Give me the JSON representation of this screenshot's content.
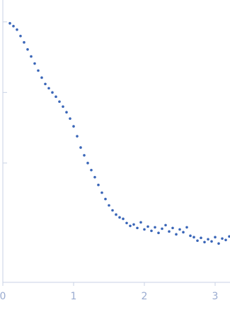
{
  "chart_data": {
    "type": "scatter",
    "color": "#3a66b8",
    "x": [
      0.1,
      0.15,
      0.2,
      0.25,
      0.3,
      0.35,
      0.4,
      0.45,
      0.5,
      0.55,
      0.6,
      0.65,
      0.7,
      0.75,
      0.8,
      0.85,
      0.9,
      0.95,
      1.0,
      1.05,
      1.1,
      1.15,
      1.2,
      1.25,
      1.3,
      1.35,
      1.4,
      1.45,
      1.5,
      1.55,
      1.6,
      1.65,
      1.7,
      1.75,
      1.8,
      1.85,
      1.9,
      1.95,
      2.0,
      2.05,
      2.1,
      2.15,
      2.2,
      2.25,
      2.3,
      2.35,
      2.4,
      2.45,
      2.5,
      2.55,
      2.6,
      2.65,
      2.7,
      2.75,
      2.8,
      2.85,
      2.9,
      2.95,
      3.0,
      3.05,
      3.1,
      3.15,
      3.2
    ],
    "values": [
      2.98,
      2.94,
      2.89,
      2.8,
      2.71,
      2.61,
      2.51,
      2.41,
      2.31,
      2.21,
      2.12,
      2.06,
      2.0,
      1.94,
      1.87,
      1.8,
      1.72,
      1.63,
      1.52,
      1.38,
      1.22,
      1.11,
      1.0,
      0.9,
      0.8,
      0.69,
      0.58,
      0.49,
      0.4,
      0.33,
      0.27,
      0.23,
      0.21,
      0.15,
      0.11,
      0.13,
      0.08,
      0.16,
      0.06,
      0.1,
      0.04,
      0.09,
      0.01,
      0.07,
      0.12,
      0.03,
      0.08,
      -0.01,
      0.06,
      0.02,
      0.09,
      -0.03,
      -0.05,
      -0.1,
      -0.06,
      -0.12,
      -0.08,
      -0.11,
      -0.05,
      -0.14,
      -0.07,
      -0.09,
      -0.04
    ],
    "xlim": [
      0,
      3.2
    ],
    "xticks": [
      0,
      1,
      2,
      3
    ],
    "ylim": [
      -0.69,
      3.31
    ],
    "yticks": [
      1,
      2,
      3
    ]
  }
}
